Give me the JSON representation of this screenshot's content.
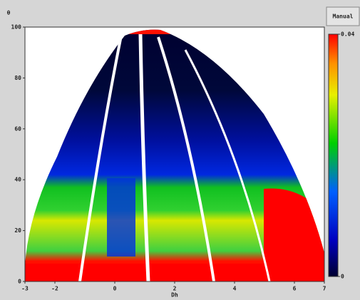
{
  "chart_data": {
    "type": "heatmap",
    "ylabel": "θ",
    "xlabel": "Dh",
    "xlim": [
      -3,
      7
    ],
    "xticks": [
      -3,
      -2,
      0,
      2,
      4,
      6,
      7
    ],
    "ylim": [
      0,
      100
    ],
    "yticks": [
      0,
      20,
      40,
      60,
      80,
      100
    ],
    "colorbar": {
      "lim": [
        0,
        0.04
      ],
      "ticks": [
        0,
        0.04
      ]
    },
    "button": "Manual"
  }
}
